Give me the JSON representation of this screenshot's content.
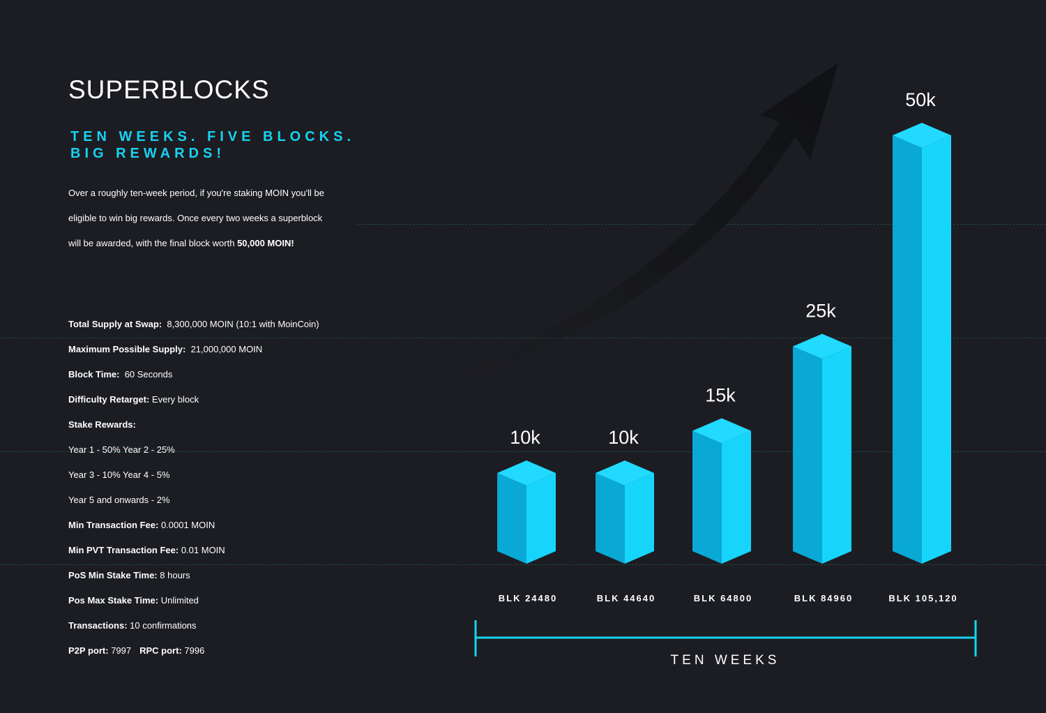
{
  "header": {
    "title": "SUPERBLOCKS",
    "subtitle_line1": "TEN WEEKS. FIVE BLOCKS.",
    "subtitle_line2": "BIG REWARDS!"
  },
  "intro": {
    "line1": "Over a roughly ten-week period, if you're staking MOIN you'll be",
    "line2": "eligible to win big rewards. Once every two weeks a superblock",
    "line3_text": "will be awarded, with the final block worth ",
    "line3_bold": "50,000 MOIN!"
  },
  "specs": [
    {
      "label": "Total Supply at Swap:",
      "value": "8,300,000 MOIN (10:1 with MoinCoin)"
    },
    {
      "label": "Maximum Possible Supply:",
      "value": "21,000,000 MOIN"
    },
    {
      "label": "Block Time:",
      "value": "60 Seconds"
    },
    {
      "label": "Difficulty Retarget:",
      "value": "Every block"
    },
    {
      "label": "Stake Rewards:",
      "value": ""
    },
    {
      "label": "",
      "value": "Year 1 - 50% Year 2 - 25%"
    },
    {
      "label": "",
      "value": "Year 3 - 10% Year 4 - 5%"
    },
    {
      "label": "",
      "value": "Year 5 and onwards - 2%"
    },
    {
      "label": "Min Transaction Fee:",
      "value": "0.0001 MOIN"
    },
    {
      "label": "Min PVT Transaction Fee:",
      "value": "0.01 MOIN"
    },
    {
      "label": "PoS Min Stake Time:",
      "value": "8 hours"
    },
    {
      "label": "Pos Max Stake Time:",
      "value": "Unlimited"
    },
    {
      "label": "Transactions:",
      "value": "10 confirmations"
    }
  ],
  "ports": {
    "p2p_label": "P2P port:",
    "p2p_value": "7997",
    "rpc_label": "RPC port:",
    "rpc_value": "7996"
  },
  "colors": {
    "background": "#1c1d22",
    "accent": "#17d2f2",
    "bar_left": "#0aa8d4",
    "bar_right": "#17d4fa",
    "bar_top": "#22d9ff"
  },
  "chart_data": {
    "type": "bar",
    "categories": [
      "BLK 24480",
      "BLK 44640",
      "BLK 64800",
      "BLK 84960",
      "BLK 105,120"
    ],
    "values": [
      10000,
      10000,
      15000,
      25000,
      50000
    ],
    "value_labels": [
      "10k",
      "10k",
      "15k",
      "25k",
      "50k"
    ],
    "xlabel": "TEN WEEKS",
    "ylim": [
      0,
      50000
    ]
  }
}
